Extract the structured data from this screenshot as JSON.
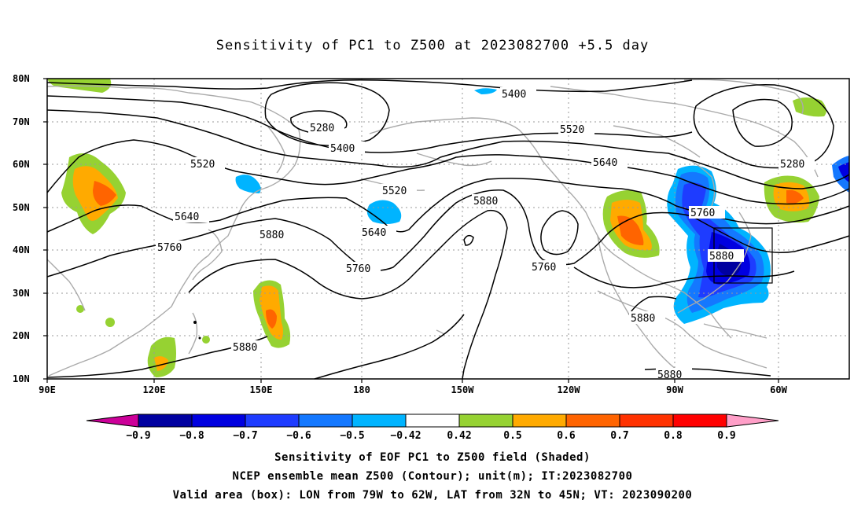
{
  "title": "Sensitivity of PC1 to Z500 at 2023082700 +5.5 day",
  "lat_labels": [
    "80N",
    "70N",
    "60N",
    "50N",
    "40N",
    "30N",
    "20N",
    "10N"
  ],
  "lon_labels": [
    "90E",
    "120E",
    "150E",
    "180",
    "150W",
    "120W",
    "90W",
    "60W"
  ],
  "colorbar": {
    "labels": [
      "-0.9",
      "-0.8",
      "-0.7",
      "-0.6",
      "-0.5",
      "-0.42",
      "0.42",
      "0.5",
      "0.6",
      "0.7",
      "0.8",
      "0.9"
    ],
    "colors": [
      "#cc0099",
      "#0000a0",
      "#0000e0",
      "#1e3cff",
      "#1478ff",
      "#00b4ff",
      "#ffffff",
      "#96d232",
      "#ffaa00",
      "#ff6400",
      "#ff3200",
      "#ff0000",
      "#ff9fc8"
    ]
  },
  "contour_labels": {
    "c5400_a": "5400",
    "c5400_b": "5400",
    "c5280_a": "5280",
    "c5280_b": "5280",
    "c5520_a": "5520",
    "c5520_b": "5520",
    "c5520_c": "5520",
    "c5640_a": "5640",
    "c5640_b": "5640",
    "c5640_c": "5640",
    "c5760_a": "5760",
    "c5760_b": "5760",
    "c5760_c": "5760",
    "c5760_d": "5760",
    "c5880_a": "5880",
    "c5880_b": "5880",
    "c5880_c": "5880",
    "c5880_d": "5880",
    "c5880_e": "5880",
    "c5880_f": "5880"
  },
  "captions": {
    "line1": "Sensitivity of EOF PC1 to Z500 field (Shaded)",
    "line2": "NCEP ensemble mean Z500 (Contour); unit(m); IT:2023082700",
    "line3": "Valid area (box): LON from 79W to 62W, LAT from 32N to 45N; VT: 2023090200"
  },
  "colors": {
    "contour": "#000000",
    "coast": "#aaaaaa",
    "grid": "#999999"
  }
}
